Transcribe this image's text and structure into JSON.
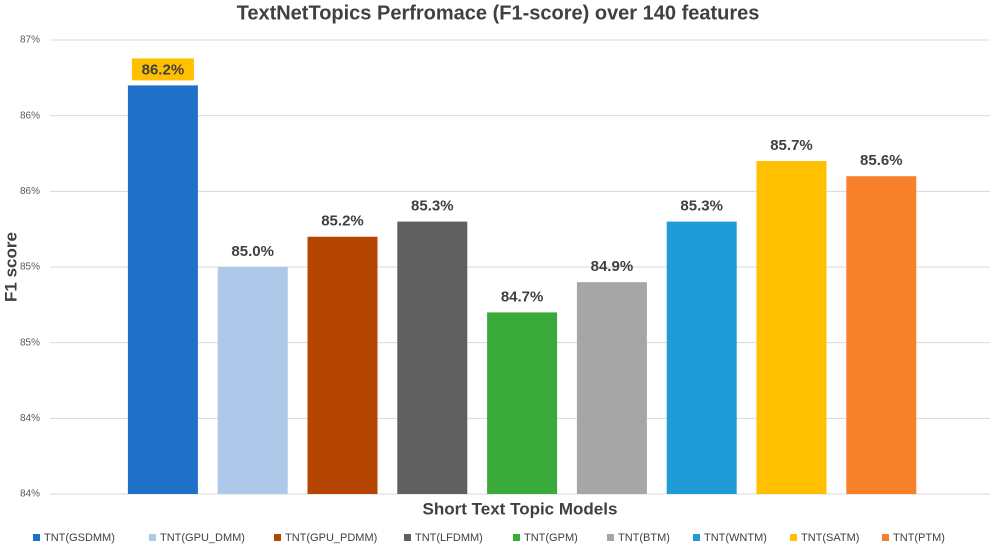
{
  "chart_data": {
    "type": "bar",
    "title": "TextNetTopics Perfromace (F1-score) over 140 features",
    "x_label": "Short Text Topic Models",
    "y_label": "F1 score",
    "categories": [
      "TNT(GSDMM)",
      "TNT(GPU_DMM)",
      "TNT(GPU_PDMM)",
      "TNT(LFDMM)",
      "TNT(GPM)",
      "TNT(BTM)",
      "TNT(WNTM)",
      "TNT(SATM)",
      "TNT(PTM)"
    ],
    "values": [
      86.2,
      85.0,
      85.2,
      85.3,
      84.7,
      84.9,
      85.3,
      85.7,
      85.6
    ],
    "value_labels": [
      "86.2%",
      "85.0%",
      "85.2%",
      "85.3%",
      "84.7%",
      "84.9%",
      "85.3%",
      "85.7%",
      "85.6%"
    ],
    "colors": [
      "#1f70c8",
      "#aec8e9",
      "#b54500",
      "#606060",
      "#3aaa3a",
      "#a6a6a6",
      "#1f9bd8",
      "#ffc000",
      "#f7812b"
    ],
    "highlight_label_color": "#ffc000",
    "ylim": [
      83.5,
      86.5
    ],
    "yticks": [
      {
        "value": 83.5,
        "label": "84%"
      },
      {
        "value": 84,
        "label": "84%"
      },
      {
        "value": 84.5,
        "label": "85%"
      },
      {
        "value": 85,
        "label": "85%"
      },
      {
        "value": 85.5,
        "label": "86%"
      },
      {
        "value": 86,
        "label": "86%"
      },
      {
        "value": 86.5,
        "label": "87%"
      }
    ],
    "grid": true,
    "legend": "bottom"
  }
}
